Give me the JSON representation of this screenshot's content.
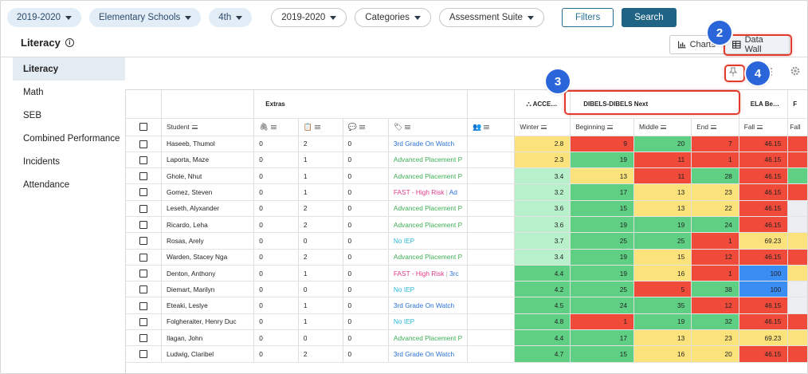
{
  "filters": [
    {
      "label": "2019-2020",
      "style": "blue"
    },
    {
      "label": "Elementary Schools",
      "style": "blue"
    },
    {
      "label": "4th",
      "style": "blue"
    },
    {
      "label": "2019-2020",
      "style": "white"
    },
    {
      "label": "Categories",
      "style": "white"
    },
    {
      "label": "Assessment Suite",
      "style": "white"
    }
  ],
  "buttons": {
    "filters": "Filters",
    "search": "Search"
  },
  "page": {
    "title": "Literacy",
    "info_icon": "info-icon"
  },
  "view_toggle": {
    "charts": "Charts",
    "data_wall": "Data Wall"
  },
  "callouts": [
    "2",
    "3",
    "4"
  ],
  "sidebar": [
    "Literacy",
    "Math",
    "SEB",
    "Combined Performance",
    "Incidents",
    "Attendance"
  ],
  "grid": {
    "groups": {
      "extras": "Extras",
      "access": "ACCE…",
      "dibels": "DIBELS-DIBELS Next",
      "ela": "ELA Be…"
    },
    "columns": {
      "student": "Student",
      "winter": "Winter",
      "beginning": "Beginning",
      "middle": "Middle",
      "end": "End",
      "fall": "Fall",
      "fall2": "Fall"
    },
    "colors": {
      "red": "#ef4a3a",
      "green": "#5fcf84",
      "yellow": "#fbe27a",
      "lightgreen": "#b8f0cc",
      "blue": "#3a8df2"
    },
    "rows": [
      {
        "student": "Haseeb, Thumol",
        "e1": "0",
        "e2": "2",
        "e3": "0",
        "tag": "3rd Grade On Watch",
        "tag2": "",
        "tagc": "blue",
        "winter": "2.8",
        "wc": "yellow",
        "beginning": "9",
        "bc": "red",
        "middle": "20",
        "mc": "green",
        "end": "7",
        "ec": "red",
        "fall": "46.15",
        "fc": "red",
        "f2c": "red"
      },
      {
        "student": "Laporta, Maze",
        "e1": "0",
        "e2": "1",
        "e3": "0",
        "tag": "Advanced Placement P",
        "tag2": "",
        "tagc": "green",
        "winter": "2.3",
        "wc": "yellow",
        "beginning": "19",
        "bc": "green",
        "middle": "11",
        "mc": "red",
        "end": "1",
        "ec": "red",
        "fall": "46.15",
        "fc": "red",
        "f2c": "red"
      },
      {
        "student": "Ghole, Nhut",
        "e1": "0",
        "e2": "1",
        "e3": "0",
        "tag": "Advanced Placement P",
        "tag2": "",
        "tagc": "green",
        "winter": "3.4",
        "wc": "lightgreen",
        "beginning": "13",
        "bc": "yellow",
        "middle": "11",
        "mc": "red",
        "end": "28",
        "ec": "green",
        "fall": "46.15",
        "fc": "red",
        "f2c": "green"
      },
      {
        "student": "Gomez, Steven",
        "e1": "0",
        "e2": "1",
        "e3": "0",
        "tag": "FAST - High Risk",
        "tag2": "Ad",
        "tagc": "pink",
        "winter": "3.2",
        "wc": "lightgreen",
        "beginning": "17",
        "bc": "green",
        "middle": "13",
        "mc": "yellow",
        "end": "23",
        "ec": "yellow",
        "fall": "46.15",
        "fc": "red",
        "f2c": "red"
      },
      {
        "student": "Leseth, Alyxander",
        "e1": "0",
        "e2": "2",
        "e3": "0",
        "tag": "Advanced Placement P",
        "tag2": "",
        "tagc": "green",
        "winter": "3.6",
        "wc": "lightgreen",
        "beginning": "15",
        "bc": "green",
        "middle": "13",
        "mc": "yellow",
        "end": "22",
        "ec": "yellow",
        "fall": "46.15",
        "fc": "red",
        "f2c": "pale"
      },
      {
        "student": "Ricardo, Leha",
        "e1": "0",
        "e2": "2",
        "e3": "0",
        "tag": "Advanced Placement P",
        "tag2": "",
        "tagc": "green",
        "winter": "3.6",
        "wc": "lightgreen",
        "beginning": "19",
        "bc": "green",
        "middle": "19",
        "mc": "green",
        "end": "24",
        "ec": "green",
        "fall": "46.15",
        "fc": "red",
        "f2c": "pale"
      },
      {
        "student": "Rosas, Arely",
        "e1": "0",
        "e2": "0",
        "e3": "0",
        "tag": "No IEP",
        "tag2": "",
        "tagc": "cyan",
        "winter": "3.7",
        "wc": "lightgreen",
        "beginning": "25",
        "bc": "green",
        "middle": "25",
        "mc": "green",
        "end": "1",
        "ec": "red",
        "fall": "69.23",
        "fc": "yellow",
        "f2c": "yellow"
      },
      {
        "student": "Warden, Stacey Nga",
        "e1": "0",
        "e2": "2",
        "e3": "0",
        "tag": "Advanced Placement P",
        "tag2": "",
        "tagc": "green",
        "winter": "3.4",
        "wc": "lightgreen",
        "beginning": "19",
        "bc": "green",
        "middle": "15",
        "mc": "yellow",
        "end": "12",
        "ec": "red",
        "fall": "46.15",
        "fc": "red",
        "f2c": "red"
      },
      {
        "student": "Denton, Anthony",
        "e1": "0",
        "e2": "1",
        "e3": "0",
        "tag": "FAST - High Risk",
        "tag2": "3rc",
        "tagc": "pink",
        "winter": "4.4",
        "wc": "green",
        "beginning": "19",
        "bc": "green",
        "middle": "16",
        "mc": "yellow",
        "end": "1",
        "ec": "red",
        "fall": "100",
        "fc": "blue",
        "f2c": "yellow"
      },
      {
        "student": "Diemart, Marilyn",
        "e1": "0",
        "e2": "0",
        "e3": "0",
        "tag": "No IEP",
        "tag2": "",
        "tagc": "cyan",
        "winter": "4.2",
        "wc": "green",
        "beginning": "25",
        "bc": "green",
        "middle": "5",
        "mc": "red",
        "end": "38",
        "ec": "green",
        "fall": "100",
        "fc": "blue",
        "f2c": "pale"
      },
      {
        "student": "Eteaki, Leslye",
        "e1": "0",
        "e2": "1",
        "e3": "0",
        "tag": "3rd Grade On Watch",
        "tag2": "",
        "tagc": "blue",
        "winter": "4.5",
        "wc": "green",
        "beginning": "24",
        "bc": "green",
        "middle": "35",
        "mc": "green",
        "end": "12",
        "ec": "red",
        "fall": "46.15",
        "fc": "red",
        "f2c": "pale"
      },
      {
        "student": "Folgheraiter, Henry Duc",
        "e1": "0",
        "e2": "1",
        "e3": "0",
        "tag": "No IEP",
        "tag2": "",
        "tagc": "cyan",
        "winter": "4.8",
        "wc": "green",
        "beginning": "1",
        "bc": "red",
        "middle": "19",
        "mc": "green",
        "end": "32",
        "ec": "green",
        "fall": "46.15",
        "fc": "red",
        "f2c": "red"
      },
      {
        "student": "Ilagan, John",
        "e1": "0",
        "e2": "0",
        "e3": "0",
        "tag": "Advanced Placement P",
        "tag2": "",
        "tagc": "green",
        "winter": "4.4",
        "wc": "green",
        "beginning": "17",
        "bc": "green",
        "middle": "13",
        "mc": "yellow",
        "end": "23",
        "ec": "yellow",
        "fall": "69.23",
        "fc": "yellow",
        "f2c": "yellow"
      },
      {
        "student": "Ludwig, Claribel",
        "e1": "0",
        "e2": "2",
        "e3": "0",
        "tag": "3rd Grade On Watch",
        "tag2": "",
        "tagc": "blue",
        "winter": "4.7",
        "wc": "green",
        "beginning": "15",
        "bc": "green",
        "middle": "16",
        "mc": "yellow",
        "end": "20",
        "ec": "yellow",
        "fall": "46.15",
        "fc": "red",
        "f2c": "red"
      }
    ]
  }
}
